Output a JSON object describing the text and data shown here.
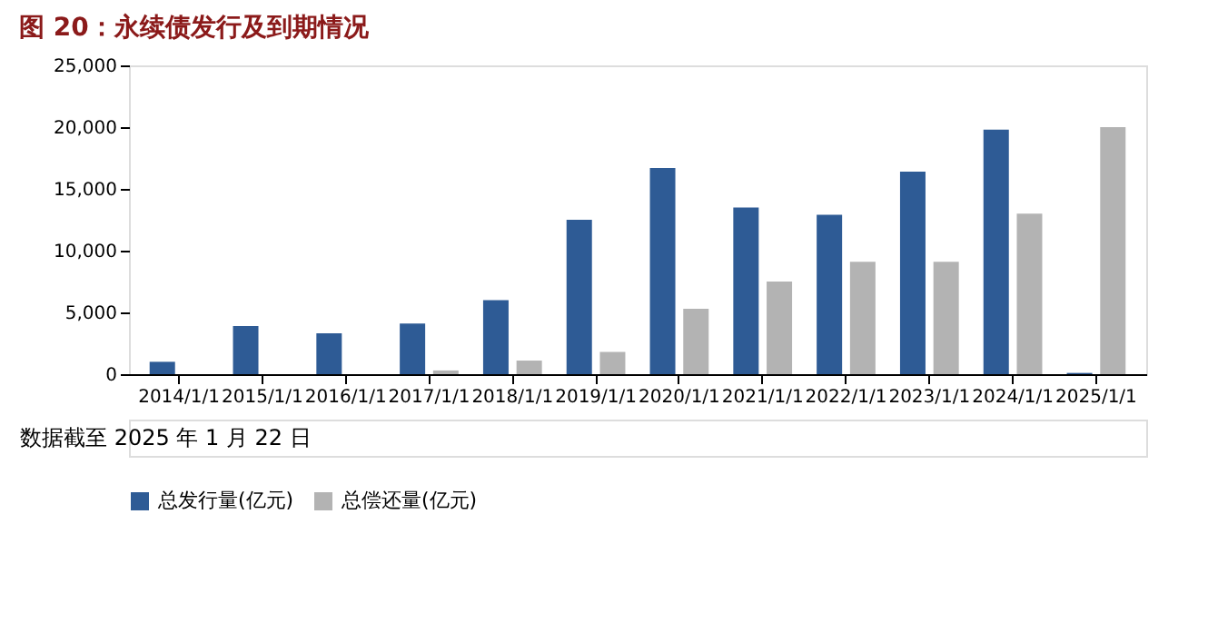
{
  "chart_data": {
    "type": "bar",
    "title": "图 20：永续债发行及到期情况",
    "categories": [
      "2014/1/1",
      "2015/1/1",
      "2016/1/1",
      "2017/1/1",
      "2018/1/1",
      "2019/1/1",
      "2020/1/1",
      "2021/1/1",
      "2022/1/1",
      "2023/1/1",
      "2024/1/1",
      "2025/1/1"
    ],
    "series": [
      {
        "name": "总发行量(亿元)",
        "color": "#2e5b95",
        "values": [
          1000,
          3900,
          3300,
          4100,
          6000,
          12500,
          16700,
          13500,
          12900,
          16400,
          19800,
          100
        ]
      },
      {
        "name": "总偿还量(亿元)",
        "color": "#b3b3b3",
        "values": [
          0,
          0,
          0,
          300,
          1100,
          1800,
          5300,
          7500,
          9100,
          9100,
          13000,
          20000
        ]
      }
    ],
    "ylim": [
      0,
      25000
    ],
    "yticks": [
      {
        "value": 0,
        "label": "0"
      },
      {
        "value": 5000,
        "label": "5,000"
      },
      {
        "value": 10000,
        "label": "10,000"
      },
      {
        "value": 15000,
        "label": "15,000"
      },
      {
        "value": 20000,
        "label": "20,000"
      },
      {
        "value": 25000,
        "label": "25,000"
      }
    ],
    "grid": false,
    "legend": "bottom",
    "annotations": [
      "数据截至 2025 年 1 月 22 日"
    ]
  }
}
